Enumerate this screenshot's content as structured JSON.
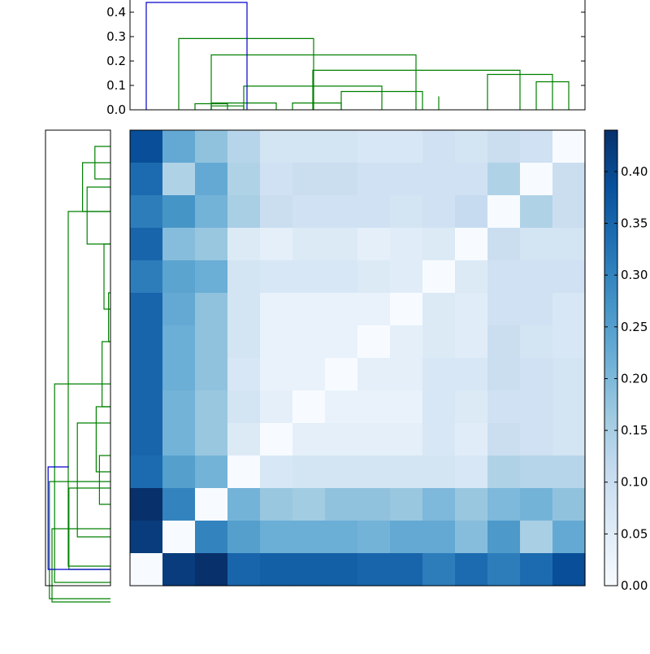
{
  "chart_data": [
    {
      "type": "dendrogram",
      "orientation": "top",
      "ylim": [
        0,
        0.45
      ],
      "yticks": [
        "0.0",
        "0.1",
        "0.2",
        "0.3",
        "0.4"
      ],
      "colors": {
        "root": "#0000cc",
        "cluster": "#008000"
      },
      "links": [
        {
          "x": [
            2.5,
            3.5
          ],
          "h": [
            0.016,
            0.016
          ],
          "c": "cluster"
        },
        {
          "x": [
            2.0,
            3.0
          ],
          "h": [
            0.025,
            0.025
          ],
          "c": "cluster"
        },
        {
          "x": [
            2.5,
            4.5
          ],
          "h": [
            0.028,
            0.028
          ],
          "c": "cluster"
        },
        {
          "x": [
            5.0,
            6.5
          ],
          "h": [
            0.028,
            0.028
          ],
          "c": "cluster"
        },
        {
          "x": [
            6.5,
            9.0
          ],
          "h": [
            0.075,
            0.075
          ],
          "c": "cluster"
        },
        {
          "x": [
            3.5,
            7.75
          ],
          "h": [
            0.097,
            0.097
          ],
          "c": "cluster"
        },
        {
          "x": [
            12.5,
            13.5
          ],
          "h": [
            0.115,
            0.115
          ],
          "c": "cluster"
        },
        {
          "x": [
            11.0,
            13.0
          ],
          "h": [
            0.145,
            0.145
          ],
          "c": "cluster"
        },
        {
          "x": [
            5.625,
            12.0
          ],
          "h": [
            0.162,
            0.162
          ],
          "c": "cluster"
        },
        {
          "x": [
            2.5,
            8.8
          ],
          "h": [
            0.225,
            0.225
          ],
          "c": "cluster"
        },
        {
          "x": [
            1.5,
            5.65
          ],
          "h": [
            0.292,
            0.292
          ],
          "c": "cluster"
        },
        {
          "x": [
            0.5,
            3.6
          ],
          "h": [
            0.44,
            0.44
          ],
          "c": "root"
        }
      ],
      "legs": [
        {
          "x": 9.5,
          "h": [
            0.0,
            0.055
          ]
        }
      ]
    },
    {
      "type": "dendrogram",
      "orientation": "left",
      "colors": {
        "root": "#0000cc",
        "cluster": "#008000"
      },
      "links": [
        {
          "y": [
            0.5,
            1.5
          ],
          "h": [
            0.24,
            0.24
          ],
          "c": "cluster"
        },
        {
          "y": [
            1.0,
            2.5
          ],
          "h": [
            0.43,
            0.43
          ],
          "c": "cluster"
        },
        {
          "y": [
            1.75,
            3.5
          ],
          "h": [
            0.36,
            0.36
          ],
          "c": "cluster"
        },
        {
          "y": [
            3.5,
            5.5
          ],
          "h": [
            0.1,
            0.1
          ],
          "c": "cluster"
        },
        {
          "y": [
            5.0,
            6.5
          ],
          "h": [
            0.03,
            0.03
          ],
          "c": "cluster"
        },
        {
          "y": [
            6.5,
            8.5
          ],
          "h": [
            0.13,
            0.13
          ],
          "c": "cluster"
        },
        {
          "y": [
            8.5,
            10.5
          ],
          "h": [
            0.22,
            0.22
          ],
          "c": "cluster"
        },
        {
          "y": [
            10.0,
            11.5
          ],
          "h": [
            0.17,
            0.17
          ],
          "c": "cluster"
        },
        {
          "y": [
            9.0,
            12.5
          ],
          "h": [
            0.51,
            0.51
          ],
          "c": "cluster"
        },
        {
          "y": [
            11.0,
            13.5
          ],
          "h": [
            0.64,
            0.64
          ],
          "c": "cluster"
        },
        {
          "y": [
            12.25,
            14.5
          ],
          "h": [
            0.9,
            0.9
          ],
          "c": "cluster"
        },
        {
          "y": [
            2.5,
            13.4
          ],
          "h": [
            0.65,
            0.65
          ],
          "c": "cluster"
        },
        {
          "y": [
            7.8,
            13.9
          ],
          "h": [
            0.86,
            0.86
          ],
          "c": "cluster"
        },
        {
          "y": [
            10.8,
            14.4
          ],
          "h": [
            0.94,
            0.94
          ],
          "c": "cluster"
        }
      ]
    },
    {
      "type": "heatmap",
      "colormap": [
        "#f7fbff",
        "#deebf7",
        "#c6dbef",
        "#9ecae1",
        "#6baed6",
        "#4292c6",
        "#2171b5",
        "#08519c",
        "#08306b"
      ],
      "vmin": 0,
      "vmax": 0.44,
      "values": [
        [
          0.39,
          0.23,
          0.18,
          0.13,
          0.08,
          0.08,
          0.08,
          0.07,
          0.07,
          0.09,
          0.08,
          0.1,
          0.09,
          0.0
        ],
        [
          0.34,
          0.14,
          0.23,
          0.14,
          0.09,
          0.1,
          0.1,
          0.09,
          0.09,
          0.09,
          0.09,
          0.14,
          0.0,
          0.1
        ],
        [
          0.31,
          0.27,
          0.21,
          0.15,
          0.1,
          0.09,
          0.09,
          0.09,
          0.08,
          0.09,
          0.11,
          0.0,
          0.14,
          0.1
        ],
        [
          0.35,
          0.19,
          0.17,
          0.06,
          0.04,
          0.06,
          0.06,
          0.04,
          0.05,
          0.06,
          0.0,
          0.1,
          0.08,
          0.08
        ],
        [
          0.31,
          0.24,
          0.22,
          0.08,
          0.07,
          0.07,
          0.07,
          0.06,
          0.05,
          0.0,
          0.06,
          0.09,
          0.09,
          0.09
        ],
        [
          0.35,
          0.23,
          0.18,
          0.08,
          0.03,
          0.03,
          0.03,
          0.03,
          0.0,
          0.06,
          0.05,
          0.09,
          0.09,
          0.07
        ],
        [
          0.35,
          0.22,
          0.18,
          0.08,
          0.03,
          0.03,
          0.03,
          0.0,
          0.04,
          0.06,
          0.05,
          0.1,
          0.08,
          0.07
        ],
        [
          0.35,
          0.22,
          0.18,
          0.07,
          0.03,
          0.03,
          0.0,
          0.04,
          0.04,
          0.07,
          0.07,
          0.1,
          0.09,
          0.08
        ],
        [
          0.35,
          0.21,
          0.17,
          0.08,
          0.04,
          0.0,
          0.03,
          0.03,
          0.03,
          0.07,
          0.06,
          0.09,
          0.09,
          0.08
        ],
        [
          0.35,
          0.21,
          0.17,
          0.06,
          0.0,
          0.04,
          0.04,
          0.04,
          0.04,
          0.07,
          0.05,
          0.1,
          0.09,
          0.08
        ],
        [
          0.34,
          0.25,
          0.21,
          0.0,
          0.07,
          0.08,
          0.08,
          0.08,
          0.08,
          0.08,
          0.07,
          0.14,
          0.13,
          0.13
        ],
        [
          0.44,
          0.3,
          0.0,
          0.21,
          0.17,
          0.16,
          0.18,
          0.18,
          0.17,
          0.2,
          0.17,
          0.2,
          0.21,
          0.18
        ],
        [
          0.42,
          0.0,
          0.3,
          0.25,
          0.22,
          0.22,
          0.22,
          0.21,
          0.23,
          0.23,
          0.19,
          0.26,
          0.15,
          0.23
        ],
        [
          0.0,
          0.42,
          0.44,
          0.35,
          0.36,
          0.36,
          0.36,
          0.35,
          0.35,
          0.31,
          0.34,
          0.31,
          0.34,
          0.39
        ]
      ]
    },
    {
      "type": "colorbar",
      "vmin": 0,
      "vmax": 0.44,
      "ticks": [
        0,
        0.05,
        0.1,
        0.15,
        0.2,
        0.25,
        0.3,
        0.35,
        0.4
      ],
      "tick_labels": [
        "0.00",
        "0.05",
        "0.10",
        "0.15",
        "0.20",
        "0.25",
        "0.30",
        "0.35",
        "0.40"
      ]
    }
  ]
}
